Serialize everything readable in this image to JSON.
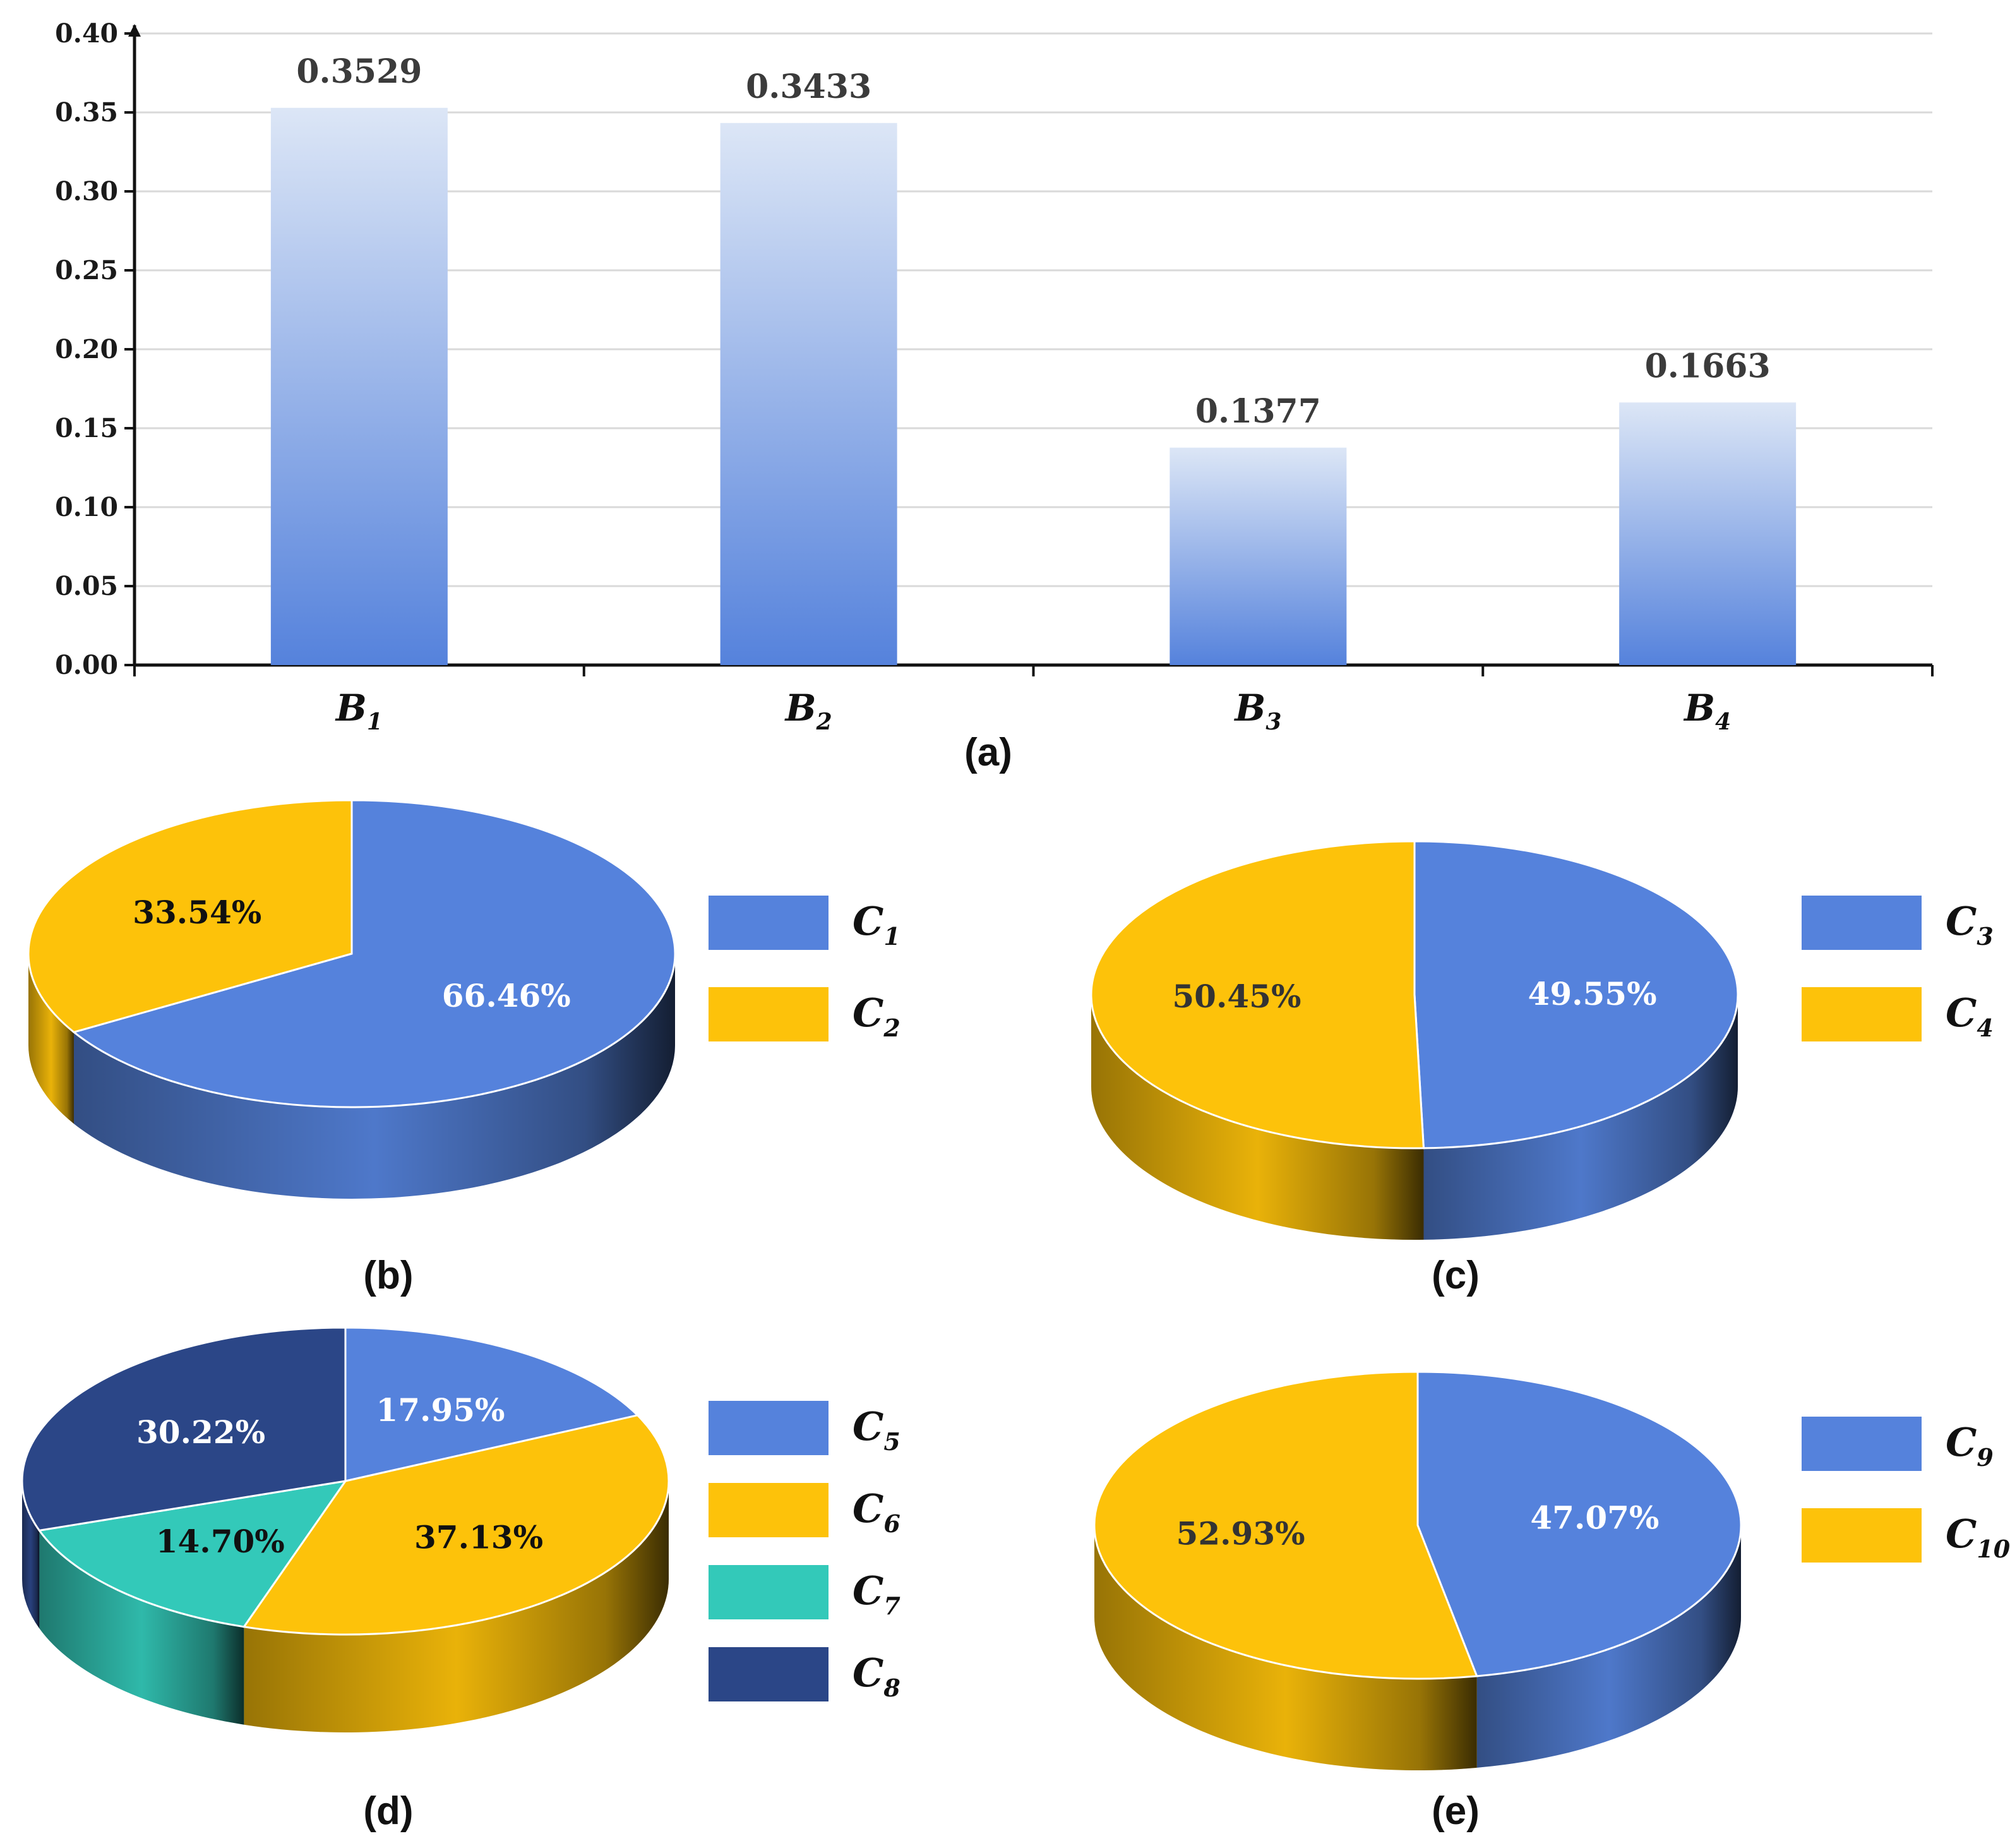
{
  "colors": {
    "blue": "#5582dc",
    "blue_dark": "#2b4f9c",
    "yellow": "#fdc20a",
    "yellow_dark": "#b8860b",
    "teal": "#33c9b9",
    "navy": "#2b4687",
    "bar_top": "#dce6f6",
    "bar_bottom": "#5582dc"
  },
  "chart_data": [
    {
      "type": "bar",
      "caption": "(a)",
      "categories": [
        {
          "main": "B",
          "sub": "1"
        },
        {
          "main": "B",
          "sub": "2"
        },
        {
          "main": "B",
          "sub": "3"
        },
        {
          "main": "B",
          "sub": "4"
        }
      ],
      "values": [
        0.3529,
        0.3433,
        0.1377,
        0.1663
      ],
      "value_labels": [
        "0.3529",
        "0.3433",
        "0.1377",
        "0.1663"
      ],
      "ylim": [
        0,
        0.4
      ],
      "yticks": [
        "0.00",
        "0.05",
        "0.10",
        "0.15",
        "0.20",
        "0.25",
        "0.30",
        "0.35",
        "0.40"
      ],
      "grid": true
    },
    {
      "type": "pie",
      "caption": "(b)",
      "slices": [
        {
          "main": "C",
          "sub": "1",
          "value": 66.46,
          "label": "66.46%",
          "color": "blue",
          "label_color": "#ffffff"
        },
        {
          "main": "C",
          "sub": "2",
          "value": 33.54,
          "label": "33.54%",
          "color": "yellow",
          "label_color": "#111111"
        }
      ]
    },
    {
      "type": "pie",
      "caption": "(c)",
      "slices": [
        {
          "main": "C",
          "sub": "3",
          "value": 49.55,
          "label": "49.55%",
          "color": "blue",
          "label_color": "#ffffff"
        },
        {
          "main": "C",
          "sub": "4",
          "value": 50.45,
          "label": "50.45%",
          "color": "yellow",
          "label_color": "#333333"
        }
      ]
    },
    {
      "type": "pie",
      "caption": "(d)",
      "slices": [
        {
          "main": "C",
          "sub": "5",
          "value": 17.95,
          "label": "17.95%",
          "color": "blue",
          "label_color": "#ffffff"
        },
        {
          "main": "C",
          "sub": "6",
          "value": 37.13,
          "label": "37.13%",
          "color": "yellow",
          "label_color": "#111111"
        },
        {
          "main": "C",
          "sub": "7",
          "value": 14.7,
          "label": "14.70%",
          "color": "teal",
          "label_color": "#111111"
        },
        {
          "main": "C",
          "sub": "8",
          "value": 30.22,
          "label": "30.22%",
          "color": "navy",
          "label_color": "#ffffff"
        }
      ]
    },
    {
      "type": "pie",
      "caption": "(e)",
      "slices": [
        {
          "main": "C",
          "sub": "9",
          "value": 47.07,
          "label": "47.07%",
          "color": "blue",
          "label_color": "#ffffff"
        },
        {
          "main": "C",
          "sub": "10",
          "value": 52.93,
          "label": "52.93%",
          "color": "yellow",
          "label_color": "#333333"
        }
      ]
    }
  ]
}
